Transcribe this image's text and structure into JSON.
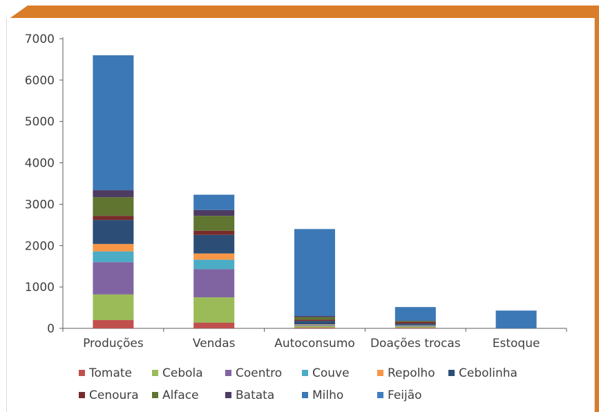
{
  "colors": {
    "frame_accent": "#D97D28",
    "axis": "#595959"
  },
  "chart_data": {
    "type": "bar",
    "stacked": true,
    "categories": [
      "Produções",
      "Vendas",
      "Autoconsumo",
      "Doações trocas",
      "Estoque"
    ],
    "ylim": [
      0,
      7000
    ],
    "yticks": [
      0,
      1000,
      2000,
      3000,
      4000,
      5000,
      6000,
      7000
    ],
    "grid": false,
    "legend_position": "bottom",
    "series": [
      {
        "name": "Tomate",
        "color": "#C0504D",
        "values": [
          200,
          140,
          20,
          15,
          0
        ]
      },
      {
        "name": "Cebola",
        "color": "#9BBB59",
        "values": [
          620,
          610,
          40,
          30,
          0
        ]
      },
      {
        "name": "Coentro",
        "color": "#8064A2",
        "values": [
          780,
          680,
          20,
          15,
          0
        ]
      },
      {
        "name": "Couve",
        "color": "#4BACC6",
        "values": [
          260,
          230,
          10,
          10,
          0
        ]
      },
      {
        "name": "Repolho",
        "color": "#F79646",
        "values": [
          180,
          150,
          10,
          5,
          0
        ]
      },
      {
        "name": "Cebolinha",
        "color": "#2C4D75",
        "values": [
          580,
          450,
          80,
          40,
          0
        ]
      },
      {
        "name": "Cenoura",
        "color": "#772C2A",
        "values": [
          100,
          100,
          30,
          40,
          0
        ]
      },
      {
        "name": "Alface",
        "color": "#5F7530",
        "values": [
          450,
          360,
          60,
          20,
          0
        ]
      },
      {
        "name": "Batata",
        "color": "#4D3B62",
        "values": [
          170,
          140,
          30,
          10,
          0
        ]
      },
      {
        "name": "Milho",
        "color": "#3C78B5",
        "values": [
          3260,
          370,
          2100,
          330,
          430
        ]
      },
      {
        "name": "Feijão",
        "color": "#3F7DC0",
        "values": [
          0,
          0,
          0,
          0,
          0
        ]
      }
    ]
  }
}
